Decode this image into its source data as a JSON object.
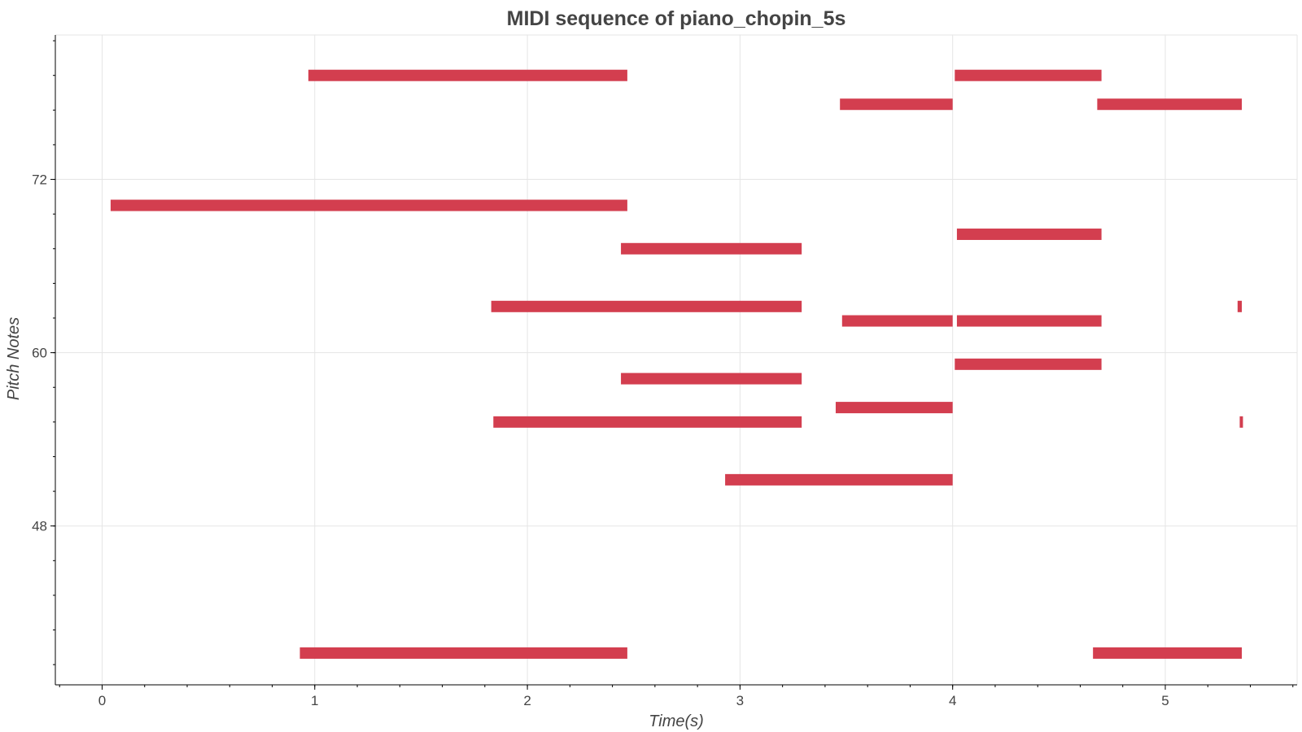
{
  "chart_data": {
    "type": "piano-roll",
    "title": "MIDI sequence of piano_chopin_5s",
    "xlabel": "Time(s)",
    "ylabel": "Pitch Notes",
    "xlim": [
      -0.22,
      5.62
    ],
    "ylim": [
      37,
      82
    ],
    "x_ticks": [
      0,
      1,
      2,
      3,
      4,
      5
    ],
    "y_ticks": [
      48,
      60,
      72
    ],
    "x_minor_step": 0.2,
    "y_minor_step": 2.4,
    "grid": true,
    "note_color": "#d33e4f",
    "notes": [
      {
        "start": 0.97,
        "end": 2.47,
        "pitch": 79.2
      },
      {
        "start": 4.01,
        "end": 4.7,
        "pitch": 79.2
      },
      {
        "start": 3.47,
        "end": 4.0,
        "pitch": 77.2
      },
      {
        "start": 4.68,
        "end": 5.36,
        "pitch": 77.2
      },
      {
        "start": 0.04,
        "end": 2.47,
        "pitch": 70.2
      },
      {
        "start": 4.02,
        "end": 4.7,
        "pitch": 68.2
      },
      {
        "start": 2.44,
        "end": 3.29,
        "pitch": 67.2
      },
      {
        "start": 1.83,
        "end": 3.29,
        "pitch": 63.2
      },
      {
        "start": 5.34,
        "end": 5.36,
        "pitch": 63.2
      },
      {
        "start": 3.48,
        "end": 4.0,
        "pitch": 62.2
      },
      {
        "start": 4.02,
        "end": 4.7,
        "pitch": 62.2
      },
      {
        "start": 4.01,
        "end": 4.7,
        "pitch": 59.2
      },
      {
        "start": 2.44,
        "end": 3.29,
        "pitch": 58.2
      },
      {
        "start": 3.45,
        "end": 4.0,
        "pitch": 56.2
      },
      {
        "start": 1.84,
        "end": 3.29,
        "pitch": 55.2
      },
      {
        "start": 5.35,
        "end": 5.36,
        "pitch": 55.2
      },
      {
        "start": 2.93,
        "end": 4.0,
        "pitch": 51.2
      },
      {
        "start": 0.93,
        "end": 2.47,
        "pitch": 39.2
      },
      {
        "start": 4.66,
        "end": 5.36,
        "pitch": 39.2
      }
    ]
  }
}
